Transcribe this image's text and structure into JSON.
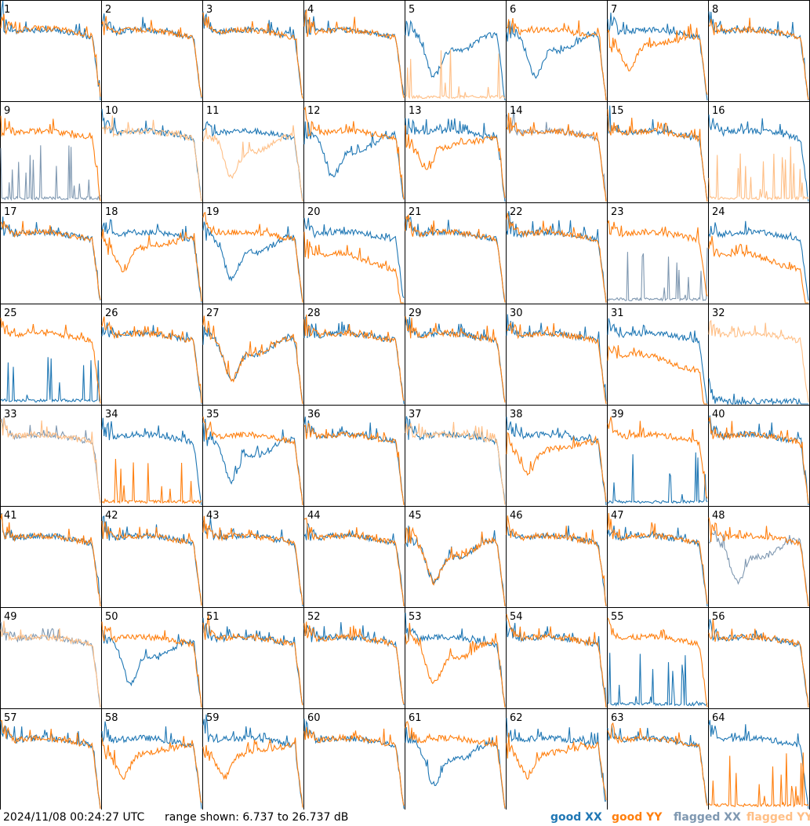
{
  "timestamp": "2024/11/08 00:24:27 UTC",
  "range_text": "range shown: 6.737 to 26.737 dB",
  "legend": {
    "good_xx": "good XX",
    "good_yy": "good YY",
    "flagged_xx": "flagged XX",
    "flagged_yy": "flagged YY"
  },
  "colors": {
    "good_xx": "#1f77b4",
    "good_yy": "#ff7f0e",
    "flagged_xx": "#7f98b1",
    "flagged_yy": "#ffbf86"
  },
  "chart_data": {
    "type": "line",
    "grid": "8x8 small multiples of bandpass spectra",
    "y_range_db": [
      6.737,
      26.737
    ],
    "tile_labels": [
      "1",
      "2",
      "3",
      "4",
      "5",
      "6",
      "7",
      "8",
      "9",
      "10",
      "11",
      "12",
      "13",
      "14",
      "15",
      "16",
      "17",
      "18",
      "19",
      "20",
      "21",
      "22",
      "23",
      "24",
      "25",
      "26",
      "27",
      "28",
      "29",
      "30",
      "31",
      "32",
      "33",
      "34",
      "35",
      "36",
      "37",
      "38",
      "39",
      "40",
      "41",
      "42",
      "43",
      "44",
      "45",
      "46",
      "47",
      "48",
      "49",
      "50",
      "51",
      "52",
      "53",
      "54",
      "55",
      "56",
      "57",
      "58",
      "59",
      "60",
      "61",
      "62",
      "63",
      "64"
    ],
    "series": [
      {
        "name": "good XX"
      },
      {
        "name": "good YY"
      },
      {
        "name": "flagged XX"
      },
      {
        "name": "flagged YY"
      }
    ],
    "tile_profiles": [
      {
        "xx": "norm",
        "yy": "norm",
        "yyOff": 1.5,
        "xxf": false,
        "yyf": false
      },
      {
        "xx": "norm",
        "yy": "norm",
        "xxf": false,
        "yyf": false
      },
      {
        "xx": "norm",
        "yy": "norm",
        "xxf": false,
        "yyf": false
      },
      {
        "xx": "norm",
        "yy": "norm",
        "xxf": false,
        "yyf": false
      },
      {
        "xx": "dip",
        "yy": "spikes",
        "xxf": false,
        "yyf": true
      },
      {
        "xx": "dip",
        "yy": "norm",
        "xxf": false,
        "yyf": false
      },
      {
        "xx": "norm",
        "yy": "lowrise",
        "xxf": false,
        "yyf": false
      },
      {
        "xx": "norm",
        "yy": "norm",
        "xxf": false,
        "yyf": false
      },
      {
        "xx": "spikes",
        "yy": "norm",
        "xxf": true,
        "yyf": false
      },
      {
        "xx": "norm",
        "yy": "norm",
        "xxf": false,
        "yyf": true
      },
      {
        "xx": "norm",
        "yy": "dip",
        "xxf": false,
        "yyf": true
      },
      {
        "xx": "dip",
        "yy": "norm",
        "xxf": false,
        "yyf": false
      },
      {
        "xx": "norm",
        "yy": "lowrise",
        "xxf": false,
        "yyf": false
      },
      {
        "xx": "norm",
        "yy": "norm",
        "xxf": true,
        "yyf": false
      },
      {
        "xx": "norm",
        "yy": "norm",
        "xxf": false,
        "yyf": false
      },
      {
        "xx": "norm",
        "yy": "spikes",
        "xxf": false,
        "yyf": true
      },
      {
        "xx": "norm",
        "yy": "norm",
        "xxf": false,
        "yyf": false
      },
      {
        "xx": "norm",
        "yy": "lowrise",
        "xxf": false,
        "yyf": false
      },
      {
        "xx": "dip",
        "yy": "norm",
        "xxf": false,
        "yyf": false
      },
      {
        "xx": "norm",
        "yy": "low",
        "xxf": false,
        "yyf": false
      },
      {
        "xx": "norm",
        "yy": "norm",
        "xxf": false,
        "yyf": false
      },
      {
        "xx": "norm",
        "yy": "norm",
        "xxf": false,
        "yyf": false
      },
      {
        "xx": "spikes",
        "yy": "norm",
        "xxf": true,
        "yyf": false
      },
      {
        "xx": "norm",
        "yy": "low",
        "xxf": false,
        "yyf": false
      },
      {
        "xx": "spikes",
        "yy": "norm",
        "xxf": false,
        "yyf": false
      },
      {
        "xx": "norm",
        "yy": "norm",
        "xxf": false,
        "yyf": false
      },
      {
        "xx": "dip",
        "yy": "dip",
        "xxf": false,
        "yyf": false
      },
      {
        "xx": "norm",
        "yy": "norm",
        "xxf": false,
        "yyf": false
      },
      {
        "xx": "norm",
        "yy": "norm",
        "xxf": false,
        "yyf": false
      },
      {
        "xx": "norm",
        "yy": "norm",
        "xxf": false,
        "yyf": false
      },
      {
        "xx": "norm",
        "yy": "low",
        "xxf": false,
        "yyf": false
      },
      {
        "xx": "flat",
        "yy": "norm",
        "xxf": false,
        "yyf": true
      },
      {
        "xx": "norm",
        "yy": "norm",
        "xxf": true,
        "yyf": true
      },
      {
        "xx": "norm",
        "yy": "spikes",
        "xxf": false,
        "yyf": false
      },
      {
        "xx": "dip",
        "yy": "norm",
        "xxf": false,
        "yyf": false
      },
      {
        "xx": "norm",
        "yy": "norm",
        "xxf": false,
        "yyf": false
      },
      {
        "xx": "norm",
        "yy": "norm",
        "xxf": false,
        "yyf": true
      },
      {
        "xx": "norm",
        "yy": "lowrise",
        "xxf": false,
        "yyf": false
      },
      {
        "xx": "spikes",
        "yy": "norm",
        "xxf": false,
        "yyf": false
      },
      {
        "xx": "norm",
        "yy": "norm",
        "xxf": false,
        "yyf": false
      },
      {
        "xx": "norm",
        "yy": "norm",
        "xxf": false,
        "yyf": false
      },
      {
        "xx": "norm",
        "yy": "norm",
        "xxf": false,
        "yyf": false
      },
      {
        "xx": "norm",
        "yy": "norm",
        "xxf": false,
        "yyf": false
      },
      {
        "xx": "norm",
        "yy": "norm",
        "xxf": false,
        "yyf": false
      },
      {
        "xx": "dip",
        "yy": "dip",
        "xxf": false,
        "yyf": false
      },
      {
        "xx": "norm",
        "yy": "norm",
        "xxf": false,
        "yyf": false
      },
      {
        "xx": "norm",
        "yy": "norm",
        "xxf": false,
        "yyf": false
      },
      {
        "xx": "dip",
        "yy": "norm",
        "xxf": true,
        "yyf": false
      },
      {
        "xx": "norm",
        "yy": "norm",
        "xxf": true,
        "yyf": true
      },
      {
        "xx": "dip",
        "yy": "norm",
        "xxf": false,
        "yyf": false
      },
      {
        "xx": "norm",
        "yy": "norm",
        "xxf": false,
        "yyf": false
      },
      {
        "xx": "norm",
        "yy": "norm",
        "xxf": false,
        "yyf": false
      },
      {
        "xx": "norm",
        "yy": "dip",
        "xxf": false,
        "yyf": false
      },
      {
        "xx": "norm",
        "yy": "norm",
        "xxf": false,
        "yyf": false
      },
      {
        "xx": "spikes",
        "yy": "norm",
        "xxf": false,
        "yyf": false
      },
      {
        "xx": "norm",
        "yy": "norm",
        "xxf": false,
        "yyf": false
      },
      {
        "xx": "norm",
        "yy": "norm",
        "xxf": false,
        "yyf": false
      },
      {
        "xx": "norm",
        "yy": "lowrise",
        "xxf": false,
        "yyf": false
      },
      {
        "xx": "norm",
        "yy": "lowrise",
        "xxf": false,
        "yyf": false
      },
      {
        "xx": "norm",
        "yy": "norm",
        "xxf": false,
        "yyf": false
      },
      {
        "xx": "dip",
        "yy": "norm",
        "xxf": false,
        "yyf": false
      },
      {
        "xx": "norm",
        "yy": "lowrise",
        "xxf": false,
        "yyf": false
      },
      {
        "xx": "norm",
        "yy": "norm",
        "xxf": false,
        "yyf": false
      },
      {
        "xx": "norm",
        "yy": "spikes",
        "xxf": false,
        "yyf": false
      }
    ]
  }
}
